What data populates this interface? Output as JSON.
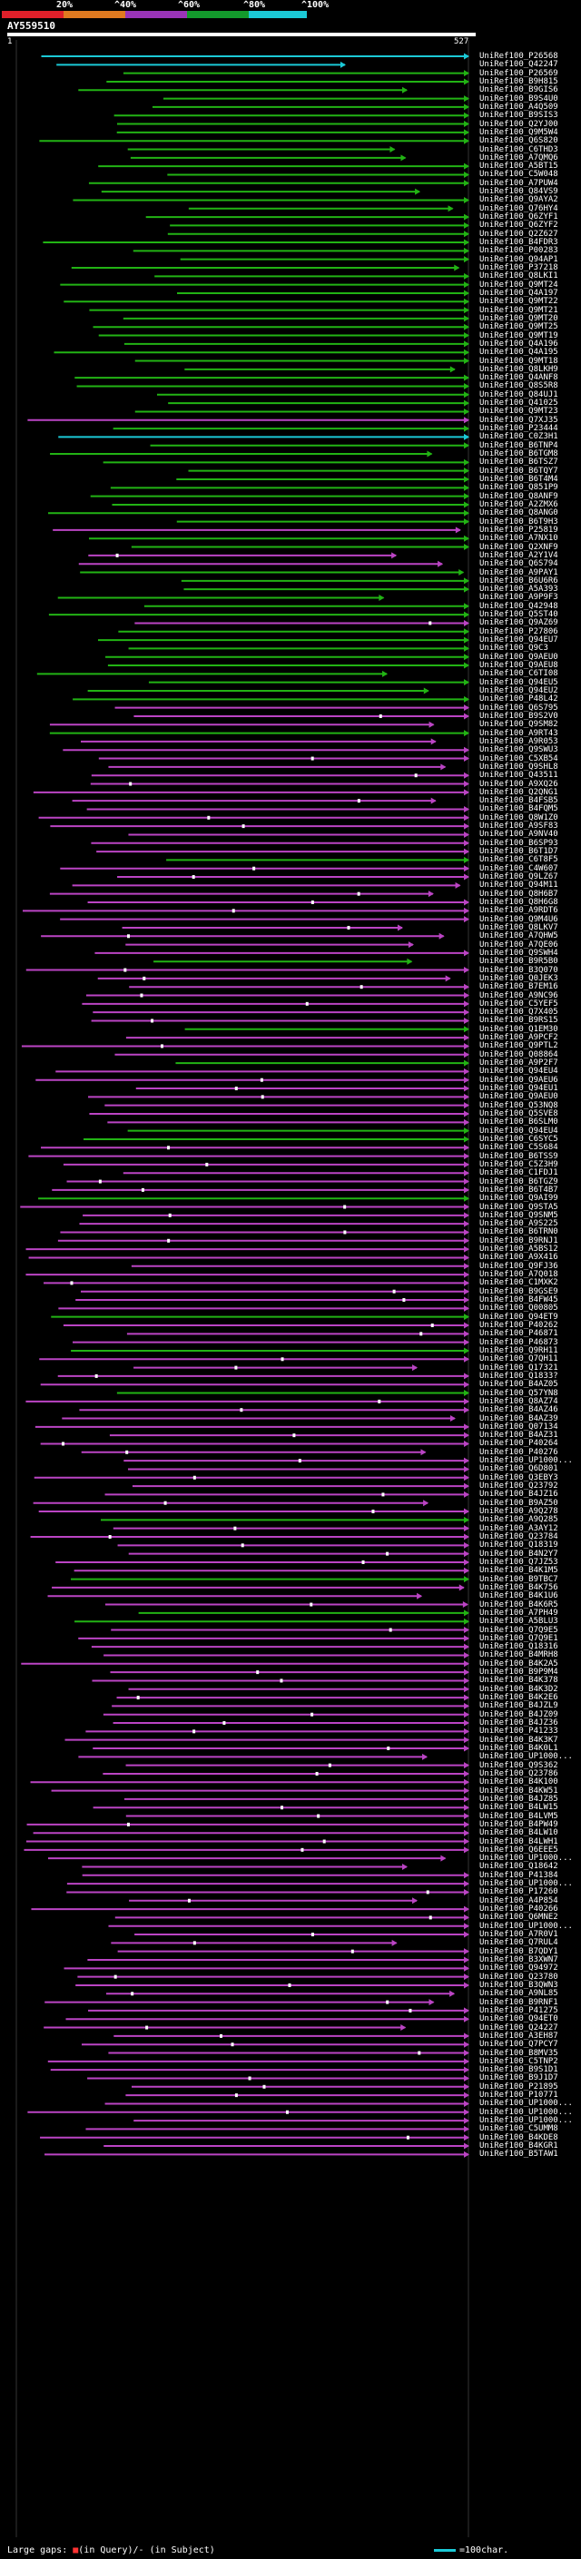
{
  "scale": {
    "labels": [
      "20%",
      "^40%",
      "^60%",
      "^80%",
      "^100%"
    ],
    "colors": [
      "#e0202a",
      "#e07a20",
      "#9a34b8",
      "#139a2c",
      "#1bc9d6"
    ]
  },
  "query": {
    "name": "AY559510",
    "start": "1",
    "end": "527"
  },
  "colors": {
    "cyan": "#1bc9d6",
    "green": "#22b314",
    "magenta": "#bb44c4",
    "gap": "#cc3333"
  },
  "hits": [
    {
      "label": "UniRef100_P26568",
      "color": "cyan"
    },
    {
      "label": "UniRef100_Q42247",
      "color": "cyan"
    },
    {
      "label": "UniRef100_P26569",
      "color": "green"
    },
    {
      "label": "UniRef100_B9H815",
      "color": "green"
    },
    {
      "label": "UniRef100_B9GIS6",
      "color": "green"
    },
    {
      "label": "UniRef100_B9S4U0",
      "color": "green"
    },
    {
      "label": "UniRef100_A4Q509",
      "color": "green"
    },
    {
      "label": "UniRef100_B9SIS3",
      "color": "green"
    },
    {
      "label": "UniRef100_Q2YJ00",
      "color": "green"
    },
    {
      "label": "UniRef100_Q9M5W4",
      "color": "green"
    },
    {
      "label": "UniRef100_Q6S820",
      "color": "green"
    },
    {
      "label": "UniRef100_C6THD3",
      "color": "green"
    },
    {
      "label": "UniRef100_A7QMQ6",
      "color": "green"
    },
    {
      "label": "UniRef100_A5BT15",
      "color": "green"
    },
    {
      "label": "UniRef100_C5W048",
      "color": "green"
    },
    {
      "label": "UniRef100_A7PUW4",
      "color": "green"
    },
    {
      "label": "UniRef100_Q84VS9",
      "color": "green"
    },
    {
      "label": "UniRef100_Q9AYA2",
      "color": "green"
    },
    {
      "label": "UniRef100_Q76HY4",
      "color": "green"
    },
    {
      "label": "UniRef100_Q6ZYF1",
      "color": "green"
    },
    {
      "label": "UniRef100_Q6ZYF2",
      "color": "green"
    },
    {
      "label": "UniRef100_Q2Z627",
      "color": "green"
    },
    {
      "label": "UniRef100_B4FDR3",
      "color": "green"
    },
    {
      "label": "UniRef100_P00283",
      "color": "green"
    },
    {
      "label": "UniRef100_Q94AP1",
      "color": "green"
    },
    {
      "label": "UniRef100_P37218",
      "color": "green"
    },
    {
      "label": "UniRef100_Q8LKI1",
      "color": "green"
    },
    {
      "label": "UniRef100_Q9MT24",
      "color": "green"
    },
    {
      "label": "UniRef100_Q4A197",
      "color": "green"
    },
    {
      "label": "UniRef100_Q9MT22",
      "color": "green"
    },
    {
      "label": "UniRef100_Q9MT21",
      "color": "green"
    },
    {
      "label": "UniRef100_Q9MT20",
      "color": "green"
    },
    {
      "label": "UniRef100_Q9MT25",
      "color": "green"
    },
    {
      "label": "UniRef100_Q9MT19",
      "color": "green"
    },
    {
      "label": "UniRef100_Q4A196",
      "color": "green"
    },
    {
      "label": "UniRef100_Q4A195",
      "color": "green"
    },
    {
      "label": "UniRef100_Q9MT18",
      "color": "green"
    },
    {
      "label": "UniRef100_Q8LKH9",
      "color": "green"
    },
    {
      "label": "UniRef100_Q4ANF8",
      "color": "green"
    },
    {
      "label": "UniRef100_Q8S5R8",
      "color": "green"
    },
    {
      "label": "UniRef100_Q84UJ1",
      "color": "green"
    },
    {
      "label": "UniRef100_Q41025",
      "color": "green"
    },
    {
      "label": "UniRef100_Q9MT23",
      "color": "green"
    },
    {
      "label": "UniRef100_Q7XJ35",
      "color": "magenta"
    },
    {
      "label": "UniRef100_P23444",
      "color": "green"
    },
    {
      "label": "UniRef100_C0Z3H1",
      "color": "cyan"
    },
    {
      "label": "UniRef100_B6TNP4",
      "color": "green"
    },
    {
      "label": "UniRef100_B6TGM8",
      "color": "green"
    },
    {
      "label": "UniRef100_B6TSZ7",
      "color": "green"
    },
    {
      "label": "UniRef100_B6TQY7",
      "color": "green"
    },
    {
      "label": "UniRef100_B6T4M4",
      "color": "green"
    },
    {
      "label": "UniRef100_Q851P9",
      "color": "green"
    },
    {
      "label": "UniRef100_Q8ANF9",
      "color": "green"
    },
    {
      "label": "UniRef100_A2ZMX6",
      "color": "green"
    },
    {
      "label": "UniRef100_Q8ANG0",
      "color": "green"
    },
    {
      "label": "UniRef100_B6T9H3",
      "color": "green"
    },
    {
      "label": "UniRef100_P25819",
      "color": "magenta"
    },
    {
      "label": "UniRef100_A7NX10",
      "color": "green"
    },
    {
      "label": "UniRef100_Q2XNF9",
      "color": "green"
    },
    {
      "label": "UniRef100_A2Y1V4",
      "color": "magenta"
    },
    {
      "label": "UniRef100_Q6S794",
      "color": "magenta"
    },
    {
      "label": "UniRef100_A9PAY1",
      "color": "green"
    },
    {
      "label": "UniRef100_B6U6R6",
      "color": "green"
    },
    {
      "label": "UniRef100_A5A393",
      "color": "green"
    },
    {
      "label": "UniRef100_A9P9F3",
      "color": "green"
    },
    {
      "label": "UniRef100_Q42948",
      "color": "green"
    },
    {
      "label": "UniRef100_Q5ST40",
      "color": "green"
    },
    {
      "label": "UniRef100_Q9AZ69",
      "color": "magenta"
    },
    {
      "label": "UniRef100_P27806",
      "color": "green"
    },
    {
      "label": "UniRef100_Q94EU7",
      "color": "green"
    },
    {
      "label": "UniRef100_Q9C3",
      "color": "green"
    },
    {
      "label": "UniRef100_Q9AEU0",
      "color": "green"
    },
    {
      "label": "UniRef100_Q9AEU8",
      "color": "green"
    },
    {
      "label": "UniRef100_C6TI08",
      "color": "green"
    },
    {
      "label": "UniRef100_Q94EU5",
      "color": "green"
    },
    {
      "label": "UniRef100_Q94EU2",
      "color": "green"
    },
    {
      "label": "UniRef100_P48L42",
      "color": "green"
    },
    {
      "label": "UniRef100_Q6S795",
      "color": "magenta"
    },
    {
      "label": "UniRef100_B9S2V0",
      "color": "magenta"
    },
    {
      "label": "UniRef100_Q9SM82",
      "color": "magenta"
    },
    {
      "label": "UniRef100_A9RT43",
      "color": "green"
    },
    {
      "label": "UniRef100_A9R053",
      "color": "magenta"
    },
    {
      "label": "UniRef100_Q9SWU3",
      "color": "magenta"
    },
    {
      "label": "UniRef100_C5XB54",
      "color": "magenta"
    },
    {
      "label": "UniRef100_Q9SHL8",
      "color": "magenta"
    },
    {
      "label": "UniRef100_Q43511",
      "color": "magenta"
    },
    {
      "label": "UniRef100_A9XQ26",
      "color": "magenta"
    },
    {
      "label": "UniRef100_Q2QNG1",
      "color": "magenta"
    },
    {
      "label": "UniRef100_B4FSB5",
      "color": "magenta"
    },
    {
      "label": "UniRef100_B4FQM5",
      "color": "magenta"
    },
    {
      "label": "UniRef100_Q8W1Z0",
      "color": "magenta"
    },
    {
      "label": "UniRef100_A9SF83",
      "color": "magenta"
    },
    {
      "label": "UniRef100_A9NV40",
      "color": "magenta"
    },
    {
      "label": "UniRef100_B6SP93",
      "color": "magenta"
    },
    {
      "label": "UniRef100_B6T1D7",
      "color": "magenta"
    },
    {
      "label": "UniRef100_C6T8F5",
      "color": "green"
    },
    {
      "label": "UniRef100_C4W607",
      "color": "magenta"
    },
    {
      "label": "UniRef100_Q9LZ67",
      "color": "magenta"
    },
    {
      "label": "UniRef100_Q94M11",
      "color": "magenta"
    },
    {
      "label": "UniRef100_Q8H6B7",
      "color": "magenta"
    },
    {
      "label": "UniRef100_Q8H6G8",
      "color": "magenta"
    },
    {
      "label": "UniRef100_A9RDT6",
      "color": "magenta"
    },
    {
      "label": "UniRef100_Q9M4U6",
      "color": "magenta"
    },
    {
      "label": "UniRef100_Q8LKV7",
      "color": "magenta"
    },
    {
      "label": "UniRef100_A7QHW5",
      "color": "magenta"
    },
    {
      "label": "UniRef100_A7QE06",
      "color": "magenta"
    },
    {
      "label": "UniRef100_Q9SWH4",
      "color": "magenta"
    },
    {
      "label": "UniRef100_B9R5B0",
      "color": "green"
    },
    {
      "label": "UniRef100_B3Q070",
      "color": "magenta"
    },
    {
      "label": "UniRef100_Q0JEK3",
      "color": "magenta"
    },
    {
      "label": "UniRef100_B7EM16",
      "color": "magenta"
    },
    {
      "label": "UniRef100_A9NC96",
      "color": "magenta"
    },
    {
      "label": "UniRef100_C5YEF5",
      "color": "magenta"
    },
    {
      "label": "UniRef100_Q7X405",
      "color": "magenta"
    },
    {
      "label": "UniRef100_B9RS15",
      "color": "magenta"
    },
    {
      "label": "UniRef100_Q1EM30",
      "color": "green"
    },
    {
      "label": "UniRef100_A9PCF2",
      "color": "magenta"
    },
    {
      "label": "UniRef100_Q9PTL2",
      "color": "magenta"
    },
    {
      "label": "UniRef100_Q08864",
      "color": "magenta"
    },
    {
      "label": "UniRef100_A9P2F7",
      "color": "green"
    },
    {
      "label": "UniRef100_Q94EU4",
      "color": "magenta"
    },
    {
      "label": "UniRef100_Q9AEU6",
      "color": "magenta"
    },
    {
      "label": "UniRef100_Q94EU1",
      "color": "magenta"
    },
    {
      "label": "UniRef100_Q9AEU0",
      "color": "magenta"
    },
    {
      "label": "UniRef100_Q53NQ8",
      "color": "magenta"
    },
    {
      "label": "UniRef100_Q5SVE8",
      "color": "magenta"
    },
    {
      "label": "UniRef100_B6SLM0",
      "color": "magenta"
    },
    {
      "label": "UniRef100_Q94EU4",
      "color": "green"
    },
    {
      "label": "UniRef100_C6SYC5",
      "color": "green"
    },
    {
      "label": "UniRef100_C5S684",
      "color": "magenta"
    },
    {
      "label": "UniRef100_B6TSS9",
      "color": "magenta"
    },
    {
      "label": "UniRef100_C5Z3H9",
      "color": "magenta"
    },
    {
      "label": "UniRef100_C1FDJ1",
      "color": "magenta"
    },
    {
      "label": "UniRef100_B6TGZ9",
      "color": "magenta"
    },
    {
      "label": "UniRef100_B6T4B7",
      "color": "magenta"
    },
    {
      "label": "UniRef100_Q9AI99",
      "color": "green"
    },
    {
      "label": "UniRef100_Q9STA5",
      "color": "magenta"
    },
    {
      "label": "UniRef100_Q9SNM5",
      "color": "magenta"
    },
    {
      "label": "UniRef100_A9S225",
      "color": "magenta"
    },
    {
      "label": "UniRef100_B6TRN0",
      "color": "magenta"
    },
    {
      "label": "UniRef100_B9RNJ1",
      "color": "magenta"
    },
    {
      "label": "UniRef100_A5BS12",
      "color": "magenta"
    },
    {
      "label": "UniRef100_A9X416",
      "color": "magenta"
    },
    {
      "label": "UniRef100_Q9FJ36",
      "color": "magenta"
    },
    {
      "label": "UniRef100_A7Q018",
      "color": "magenta"
    },
    {
      "label": "UniRef100_C1MXK2",
      "color": "magenta"
    },
    {
      "label": "UniRef100_B9GSE9",
      "color": "magenta"
    },
    {
      "label": "UniRef100_B4FW45",
      "color": "magenta"
    },
    {
      "label": "UniRef100_Q00805",
      "color": "magenta"
    },
    {
      "label": "UniRef100_Q94ET9",
      "color": "green"
    },
    {
      "label": "UniRef100_P40262",
      "color": "magenta"
    },
    {
      "label": "UniRef100_P46871",
      "color": "magenta"
    },
    {
      "label": "UniRef100_P46873",
      "color": "magenta"
    },
    {
      "label": "UniRef100_Q9RH11",
      "color": "green"
    },
    {
      "label": "UniRef100_Q7QH11",
      "color": "magenta"
    },
    {
      "label": "UniRef100_Q17321",
      "color": "magenta"
    },
    {
      "label": "UniRef100_Q1833?",
      "color": "magenta"
    },
    {
      "label": "UniRef100_B4AZ05",
      "color": "magenta"
    },
    {
      "label": "UniRef100_Q57YN8",
      "color": "green"
    },
    {
      "label": "UniRef100_Q8AZ74",
      "color": "magenta"
    },
    {
      "label": "UniRef100_B4AZ46",
      "color": "magenta"
    },
    {
      "label": "UniRef100_B4AZ39",
      "color": "magenta"
    },
    {
      "label": "UniRef100_Q07134",
      "color": "magenta"
    },
    {
      "label": "UniRef100_B4AZ31",
      "color": "magenta"
    },
    {
      "label": "UniRef100_P40264",
      "color": "magenta"
    },
    {
      "label": "UniRef100_P40276",
      "color": "magenta"
    },
    {
      "label": "UniRef100_UP1000...",
      "color": "magenta"
    },
    {
      "label": "UniRef100_Q6D801",
      "color": "magenta"
    },
    {
      "label": "UniRef100_Q3EBY3",
      "color": "magenta"
    },
    {
      "label": "UniRef100_Q23792",
      "color": "magenta"
    },
    {
      "label": "UniRef100_B4JZ16",
      "color": "magenta"
    },
    {
      "label": "UniRef100_B9AZ50",
      "color": "magenta"
    },
    {
      "label": "UniRef100_A9Q278",
      "color": "magenta"
    },
    {
      "label": "UniRef100_A9Q285",
      "color": "green"
    },
    {
      "label": "UniRef100_A3AY12",
      "color": "magenta"
    },
    {
      "label": "UniRef100_Q23784",
      "color": "magenta"
    },
    {
      "label": "UniRef100_Q18319",
      "color": "magenta"
    },
    {
      "label": "UniRef100_B4N2Y7",
      "color": "magenta"
    },
    {
      "label": "UniRef100_Q7JZ53",
      "color": "magenta"
    },
    {
      "label": "UniRef100_B4K1M5",
      "color": "magenta"
    },
    {
      "label": "UniRef100_B9TBC7",
      "color": "green"
    },
    {
      "label": "UniRef100_B4K756",
      "color": "magenta"
    },
    {
      "label": "UniRef100_B4K1U6",
      "color": "magenta"
    },
    {
      "label": "UniRef100_B4K6R5",
      "color": "magenta"
    },
    {
      "label": "UniRef100_A7PH49",
      "color": "green"
    },
    {
      "label": "UniRef100_A5BLU3",
      "color": "green"
    },
    {
      "label": "UniRef100_Q7Q9E5",
      "color": "magenta"
    },
    {
      "label": "UniRef100_Q7Q9E1",
      "color": "magenta"
    },
    {
      "label": "UniRef100_Q18316",
      "color": "magenta"
    },
    {
      "label": "UniRef100_B4MRH8",
      "color": "magenta"
    },
    {
      "label": "UniRef100_B4K2A5",
      "color": "magenta"
    },
    {
      "label": "UniRef100_B9P9M4",
      "color": "magenta"
    },
    {
      "label": "UniRef100_B4K378",
      "color": "magenta"
    },
    {
      "label": "UniRef100_B4K3D2",
      "color": "magenta"
    },
    {
      "label": "UniRef100_B4K2E6",
      "color": "magenta"
    },
    {
      "label": "UniRef100_B4JZL9",
      "color": "magenta"
    },
    {
      "label": "UniRef100_B4JZ09",
      "color": "magenta"
    },
    {
      "label": "UniRef100_B4JZ36",
      "color": "magenta"
    },
    {
      "label": "UniRef100_P41233",
      "color": "magenta"
    },
    {
      "label": "UniRef100_B4K3K7",
      "color": "magenta"
    },
    {
      "label": "UniRef100_B4K0L1",
      "color": "magenta"
    },
    {
      "label": "UniRef100_UP1000...",
      "color": "magenta"
    },
    {
      "label": "UniRef100_Q9S362",
      "color": "magenta"
    },
    {
      "label": "UniRef100_Q23786",
      "color": "magenta"
    },
    {
      "label": "UniRef100_B4K100",
      "color": "magenta"
    },
    {
      "label": "UniRef100_B4KW51",
      "color": "magenta"
    },
    {
      "label": "UniRef100_B4JZ85",
      "color": "magenta"
    },
    {
      "label": "UniRef100_B4LW15",
      "color": "magenta"
    },
    {
      "label": "UniRef100_B4LVM5",
      "color": "magenta"
    },
    {
      "label": "UniRef100_B4PW49",
      "color": "magenta"
    },
    {
      "label": "UniRef100_B4LW10",
      "color": "magenta"
    },
    {
      "label": "UniRef100_B4LWH1",
      "color": "magenta"
    },
    {
      "label": "UniRef100_Q6EEE5",
      "color": "magenta"
    },
    {
      "label": "UniRef100_UP1000...",
      "color": "magenta"
    },
    {
      "label": "UniRef100_Q18642",
      "color": "magenta"
    },
    {
      "label": "UniRef100_P41384",
      "color": "magenta"
    },
    {
      "label": "UniRef100_UP1000...",
      "color": "magenta"
    },
    {
      "label": "UniRef100_P17260",
      "color": "magenta"
    },
    {
      "label": "UniRef100_A4P854",
      "color": "magenta"
    },
    {
      "label": "UniRef100_P40266",
      "color": "magenta"
    },
    {
      "label": "UniRef100_Q6MNE2",
      "color": "magenta"
    },
    {
      "label": "UniRef100_UP1000...",
      "color": "magenta"
    },
    {
      "label": "UniRef100_A7R0V1",
      "color": "magenta"
    },
    {
      "label": "UniRef100_Q7RUL4",
      "color": "magenta"
    },
    {
      "label": "UniRef100_B7QDY1",
      "color": "magenta"
    },
    {
      "label": "UniRef100_B3XWN7",
      "color": "magenta"
    },
    {
      "label": "UniRef100_Q94972",
      "color": "magenta"
    },
    {
      "label": "UniRef100_Q23780",
      "color": "magenta"
    },
    {
      "label": "UniRef100_B3QWN3",
      "color": "magenta"
    },
    {
      "label": "UniRef100_A9NL85",
      "color": "magenta"
    },
    {
      "label": "UniRef100_B9RNF1",
      "color": "magenta"
    },
    {
      "label": "UniRef100_P41275",
      "color": "magenta"
    },
    {
      "label": "UniRef100_Q94ET0",
      "color": "magenta"
    },
    {
      "label": "UniRef100_Q24227",
      "color": "magenta"
    },
    {
      "label": "UniRef100_A3EH87",
      "color": "magenta"
    },
    {
      "label": "UniRef100_Q7PCY7",
      "color": "magenta"
    },
    {
      "label": "UniRef100_B8MV35",
      "color": "magenta"
    },
    {
      "label": "UniRef100_C5TNP2",
      "color": "magenta"
    },
    {
      "label": "UniRef100_B9S1D1",
      "color": "magenta"
    },
    {
      "label": "UniRef100_B9J1D7",
      "color": "magenta"
    },
    {
      "label": "UniRef100_P21895",
      "color": "magenta"
    },
    {
      "label": "UniRef100_P10771",
      "color": "magenta"
    },
    {
      "label": "UniRef100_UP1000...",
      "color": "magenta"
    },
    {
      "label": "UniRef100_UP1000...",
      "color": "magenta"
    },
    {
      "label": "UniRef100_UP1000...",
      "color": "magenta"
    },
    {
      "label": "UniRef100_C5UMM8",
      "color": "magenta"
    },
    {
      "label": "UniRef100_B4KDE8",
      "color": "magenta"
    },
    {
      "label": "UniRef100_B4KGR1",
      "color": "magenta"
    },
    {
      "label": "UniRef100_B5TAW1",
      "color": "magenta"
    }
  ],
  "footer": {
    "gap_prefix": "Large gaps: ",
    "gap_query": "(in Query)",
    "gap_sep": "/",
    "gap_subject": "- (in Subject)",
    "scale_text": "=100char."
  }
}
